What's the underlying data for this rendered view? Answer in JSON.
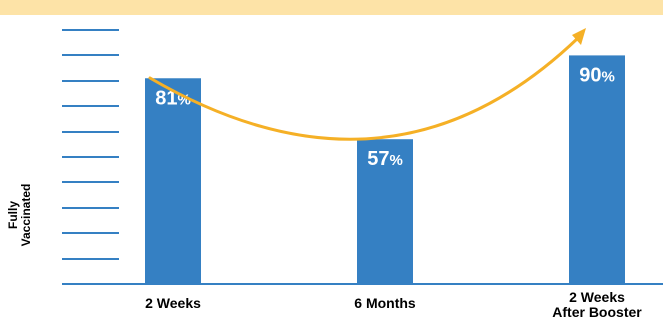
{
  "colors": {
    "band": "#FDE3A7",
    "bar": "#3580C3",
    "axis": "#3580C3",
    "arrow": "#F5B026",
    "bar_text": "#ffffff"
  },
  "chart_data": {
    "type": "bar",
    "ylabel": "Fully\nVaccinated",
    "categories": [
      [
        "2 Weeks"
      ],
      [
        "6 Months"
      ],
      [
        "2 Weeks",
        "After Booster"
      ]
    ],
    "values": [
      81,
      57,
      90
    ],
    "value_labels": [
      "81",
      "57",
      "90"
    ],
    "value_suffix": "%",
    "ylim": [
      0,
      100
    ],
    "grid": false,
    "annotations": [
      "arrow curving from 2 Weeks down through 6 Months up to 2 Weeks After Booster"
    ]
  }
}
